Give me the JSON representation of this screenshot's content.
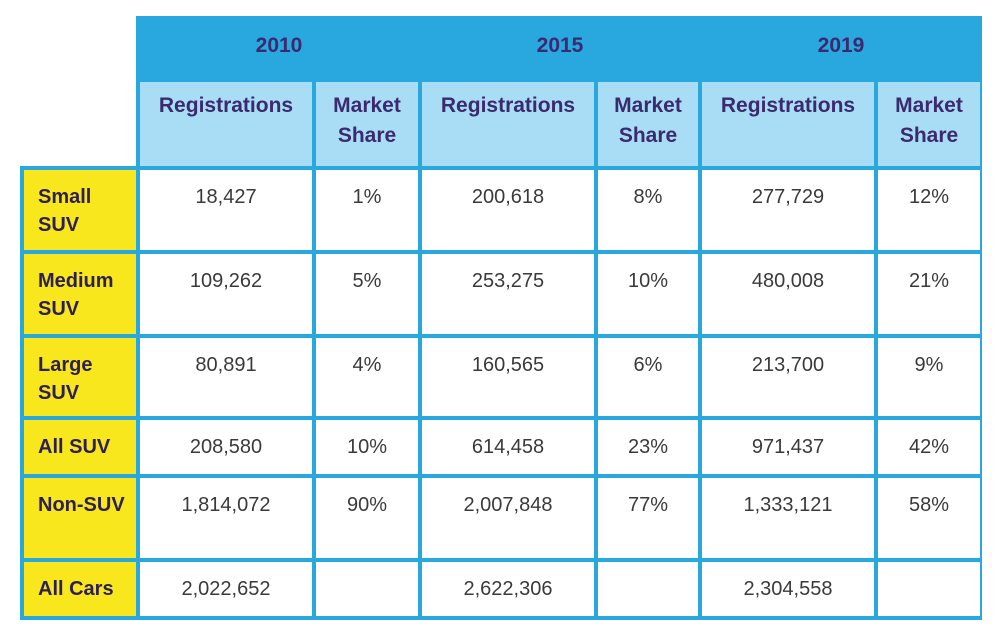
{
  "chart_data": {
    "type": "table",
    "years": [
      "2010",
      "2015",
      "2019"
    ],
    "subheaders": [
      "Registrations",
      "Market Share"
    ],
    "rows": [
      {
        "label": "Small SUV",
        "values": [
          "18,427",
          "1%",
          "200,618",
          "8%",
          "277,729",
          "12%"
        ]
      },
      {
        "label": "Medium SUV",
        "values": [
          "109,262",
          "5%",
          "253,275",
          "10%",
          "480,008",
          "21%"
        ]
      },
      {
        "label": "Large SUV",
        "values": [
          "80,891",
          "4%",
          "160,565",
          "6%",
          "213,700",
          "9%"
        ]
      },
      {
        "label": "All SUV",
        "values": [
          "208,580",
          "10%",
          "614,458",
          "23%",
          "971,437",
          "42%"
        ]
      },
      {
        "label": "Non-SUV",
        "values": [
          "1,814,072",
          "90%",
          "2,007,848",
          "77%",
          "1,333,121",
          "58%"
        ]
      },
      {
        "label": "All Cars",
        "values": [
          "2,022,652",
          "",
          "2,622,306",
          "",
          "2,304,558",
          ""
        ]
      }
    ]
  },
  "colors": {
    "header_blue": "#29a8e0",
    "subheader_light_blue": "#a9ddf6",
    "row_label_yellow": "#f8e71c",
    "header_text_purple": "#3b2a6e"
  }
}
